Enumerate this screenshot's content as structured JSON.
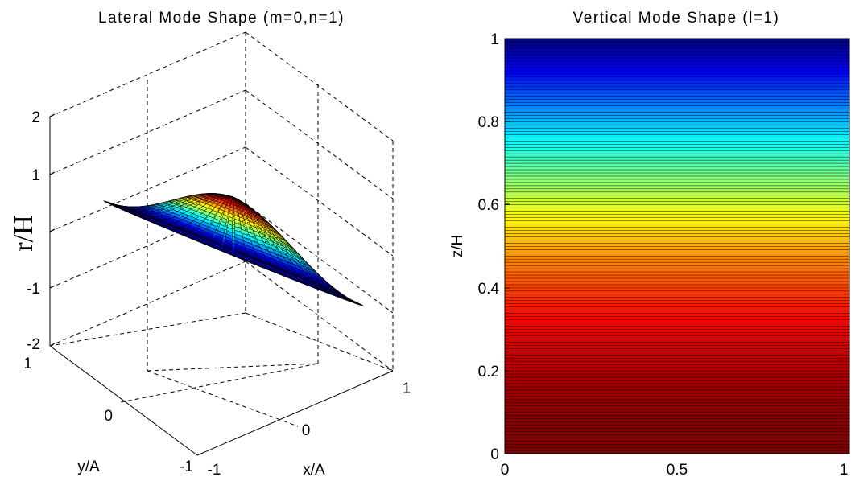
{
  "chart_data": [
    {
      "type": "surface",
      "title": "Lateral Mode Shape (m=0,n=1)",
      "xlabel": "x/A",
      "ylabel": "y/A",
      "zlabel": "r/H",
      "xlim": [
        -1,
        1
      ],
      "ylim": [
        -1,
        1
      ],
      "zlim": [
        -2,
        2
      ],
      "x_ticks": [
        "-1",
        "0",
        "1"
      ],
      "y_ticks": [
        "-1",
        "0",
        "1"
      ],
      "z_ticks": [
        "2",
        "1",
        "",
        "-1",
        "-2"
      ],
      "grid": true,
      "colormap": "jet",
      "surface": {
        "shape": "axisymmetric mode (m=0, n=1)",
        "peak_value": 1.0,
        "rim_value": 0.0,
        "radius": 1.0
      }
    },
    {
      "type": "heatmap",
      "title": "Vertical Mode Shape (l=1)",
      "xlabel": "",
      "ylabel": "z/H",
      "xlim": [
        0,
        1
      ],
      "ylim": [
        0,
        1
      ],
      "x_ticks": [
        "0",
        "0.5",
        "1"
      ],
      "y_ticks": [
        "0",
        "0.2",
        "0.4",
        "0.6",
        "0.8",
        "1"
      ],
      "colormap": "jet",
      "color_mapping": "value decreases with z (cos mode): dark red at z=0, dark blue at z=1",
      "rows": 130
    }
  ],
  "colors": {
    "gridline": "#000000",
    "facet_edge": "#000000",
    "background": "#ffffff"
  }
}
